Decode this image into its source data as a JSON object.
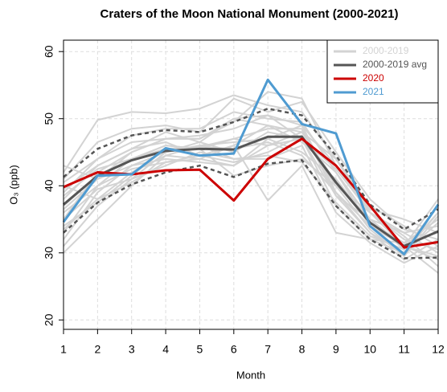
{
  "chart_data": {
    "type": "line",
    "title": "Craters of the Moon National Monument (2000-2021)",
    "xlabel": "Month",
    "ylabel": "O₃ (ppb)",
    "x": [
      1,
      2,
      3,
      4,
      5,
      6,
      7,
      8,
      9,
      10,
      11,
      12
    ],
    "xlim": [
      1,
      12
    ],
    "xticks": [
      1,
      2,
      3,
      4,
      5,
      6,
      7,
      8,
      9,
      10,
      11,
      12
    ],
    "ylim": [
      18.6,
      61.7
    ],
    "yticks": [
      20,
      30,
      40,
      50,
      60
    ],
    "grid": true,
    "legend": "topright",
    "series": [
      {
        "name": "2000-2019",
        "color": "#d3d3d3",
        "lines": [
          [
            42,
            49.8,
            51,
            50.8,
            51.5,
            53.5,
            52,
            51,
            44,
            36,
            33,
            30
          ],
          [
            41,
            46.5,
            48.5,
            49,
            48,
            53,
            51,
            52.5,
            45,
            38,
            33.5,
            32
          ],
          [
            39,
            44,
            47.5,
            48.5,
            48.5,
            51,
            50,
            49.5,
            42,
            34,
            31,
            29
          ],
          [
            35,
            42,
            45,
            47,
            47,
            49.5,
            54,
            53,
            43,
            36.5,
            35,
            33
          ],
          [
            33,
            40,
            44,
            46,
            45.5,
            47,
            48.5,
            48.5,
            38.5,
            33,
            30,
            36
          ],
          [
            31,
            37,
            41,
            45,
            46.5,
            45,
            48,
            47,
            37,
            32,
            30,
            34.5
          ],
          [
            38,
            43,
            45.5,
            46.5,
            44.5,
            43.5,
            45,
            47.5,
            40,
            36,
            32.5,
            28
          ],
          [
            30,
            35,
            40,
            44.5,
            46,
            44,
            44,
            46,
            36,
            31.5,
            28.5,
            31
          ],
          [
            36.5,
            41,
            43,
            44,
            43.5,
            43,
            47,
            45,
            41,
            34.5,
            31.5,
            35
          ],
          [
            40,
            38,
            42,
            44.5,
            44,
            46,
            49,
            46.5,
            42,
            35,
            30.5,
            37
          ],
          [
            32,
            39,
            43,
            45,
            46,
            46.5,
            47,
            49,
            39,
            33,
            29,
            32
          ],
          [
            37,
            41.5,
            44,
            45.5,
            45.8,
            47,
            46,
            47,
            38.5,
            35,
            31,
            38
          ],
          [
            43,
            41,
            45,
            47,
            47,
            50,
            49,
            48,
            44,
            37,
            34,
            31
          ],
          [
            36,
            40,
            42.5,
            43.5,
            44.5,
            46,
            37.8,
            43,
            33,
            32,
            31.5,
            33
          ],
          [
            34,
            37.5,
            41.5,
            45.5,
            45.8,
            45.5,
            46.5,
            44.5,
            39,
            34,
            31,
            27
          ],
          [
            38.5,
            42.5,
            44,
            46,
            45.5,
            41.5,
            43,
            44,
            40,
            33.5,
            29.5,
            35.5
          ],
          [
            40.5,
            44,
            46.5,
            47,
            47.5,
            48.5,
            50.5,
            49,
            43,
            36,
            32,
            30.5
          ],
          [
            35,
            39.5,
            41,
            43,
            45,
            44,
            44.5,
            43.5,
            37.5,
            32.5,
            30.5,
            36
          ],
          [
            33.5,
            38,
            40.5,
            43.5,
            44,
            43,
            46,
            48,
            40.5,
            35,
            33,
            34
          ],
          [
            39.5,
            43,
            45.5,
            48,
            46.5,
            50,
            50.5,
            47,
            42.5,
            36,
            31,
            29.5
          ]
        ]
      },
      {
        "name": "2000-2019 avg",
        "color": "#555555",
        "values": [
          37.2,
          41.5,
          43.8,
          45.2,
          45.5,
          45.4,
          47.3,
          47.3,
          40.5,
          34.5,
          31.0,
          33.2
        ],
        "upper": [
          41.3,
          45.5,
          47.5,
          48.3,
          48,
          49.5,
          51.5,
          50.5,
          44.5,
          37.2,
          33.5,
          36.5
        ],
        "lower": [
          33,
          37.5,
          40.2,
          42,
          43,
          41.3,
          43.3,
          43.8,
          37,
          32,
          29.2,
          29.3
        ]
      },
      {
        "name": "2020",
        "color": "#cc0000",
        "values": [
          39.8,
          42,
          41.7,
          42.3,
          42.4,
          37.8,
          44,
          47,
          43,
          37,
          30.8,
          31.6
        ]
      },
      {
        "name": "2021",
        "color": "#4f9bd1",
        "values": [
          34.6,
          41.5,
          41.7,
          45.6,
          44.5,
          44.8,
          55.8,
          49.2,
          47.8,
          34,
          29.8,
          37.2
        ]
      }
    ]
  }
}
